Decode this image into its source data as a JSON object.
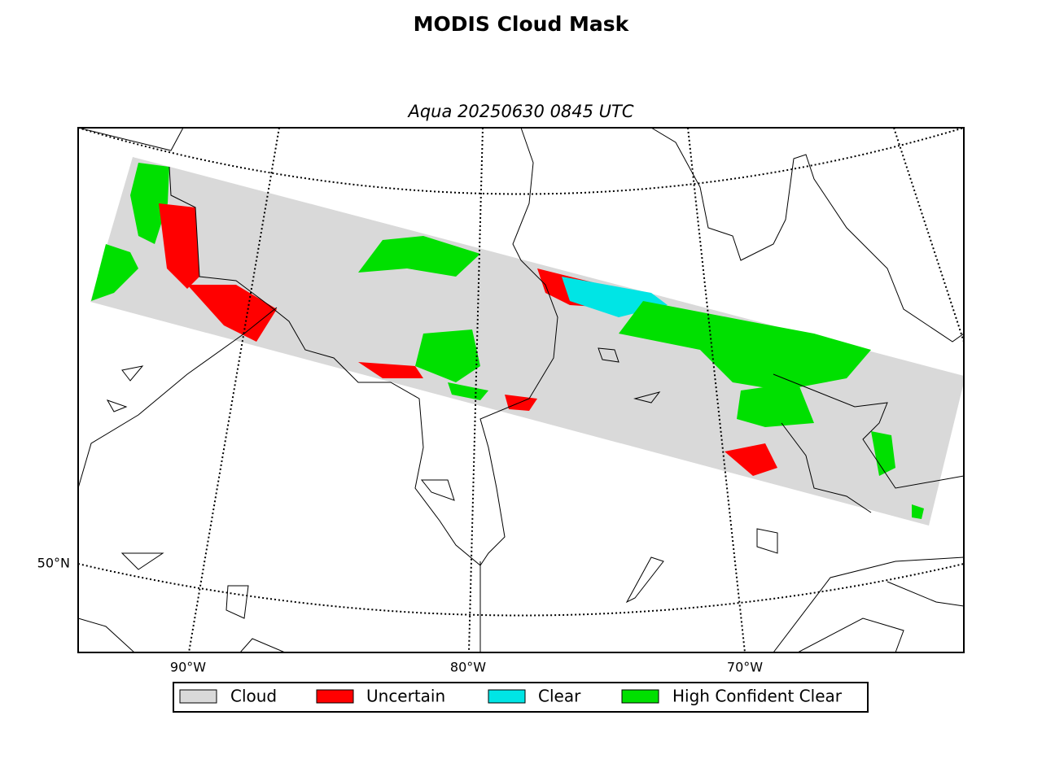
{
  "title": "MODIS Cloud Mask",
  "subtitle": "Aqua 20250630 0845 UTC",
  "map": {
    "lat_labels": [
      "50°N"
    ],
    "lon_labels": [
      "90°W",
      "80°W",
      "70°W"
    ]
  },
  "legend": [
    {
      "label": "Cloud",
      "color": "#d9d9d9"
    },
    {
      "label": "Uncertain",
      "color": "#ff0000"
    },
    {
      "label": "Clear",
      "color": "#00e5e5"
    },
    {
      "label": "High Confident Clear",
      "color": "#00e000"
    }
  ]
}
